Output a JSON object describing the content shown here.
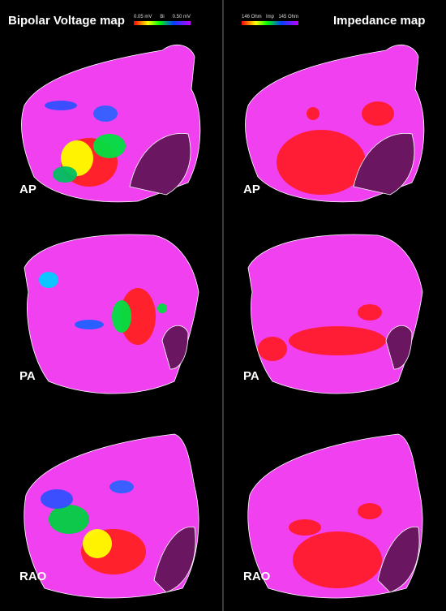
{
  "panels": [
    {
      "title": "Bipolar Voltage map",
      "scale": {
        "min": "0.05 mV",
        "name": "Bi",
        "max": "0.50 mV"
      },
      "views": [
        "AP",
        "PA",
        "RAO"
      ]
    },
    {
      "title": "Impedance map",
      "scale": {
        "min": "146 Ohm",
        "name": "Imp",
        "max": "145 Ohm"
      },
      "views": [
        "AP",
        "PA",
        "RAO"
      ]
    }
  ]
}
